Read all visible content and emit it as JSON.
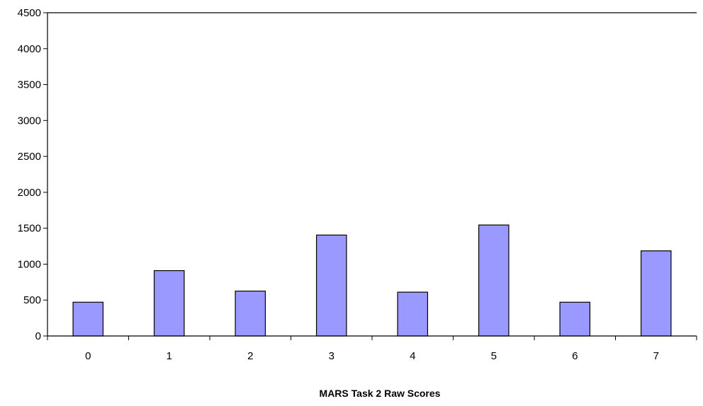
{
  "chart_data": {
    "type": "bar",
    "title": "",
    "xlabel": "MARS Task 2 Raw Scores",
    "ylabel": "",
    "categories": [
      "0",
      "1",
      "2",
      "3",
      "4",
      "5",
      "6",
      "7"
    ],
    "values": [
      470,
      910,
      625,
      1405,
      610,
      1545,
      470,
      1185
    ],
    "ylim": [
      0,
      4500
    ],
    "yticks": [
      0,
      500,
      1000,
      1500,
      2000,
      2500,
      3000,
      3500,
      4000,
      4500
    ],
    "grid": false,
    "legend": "none",
    "bar_color": "#9999ff",
    "bar_edge_color": "#000000"
  }
}
